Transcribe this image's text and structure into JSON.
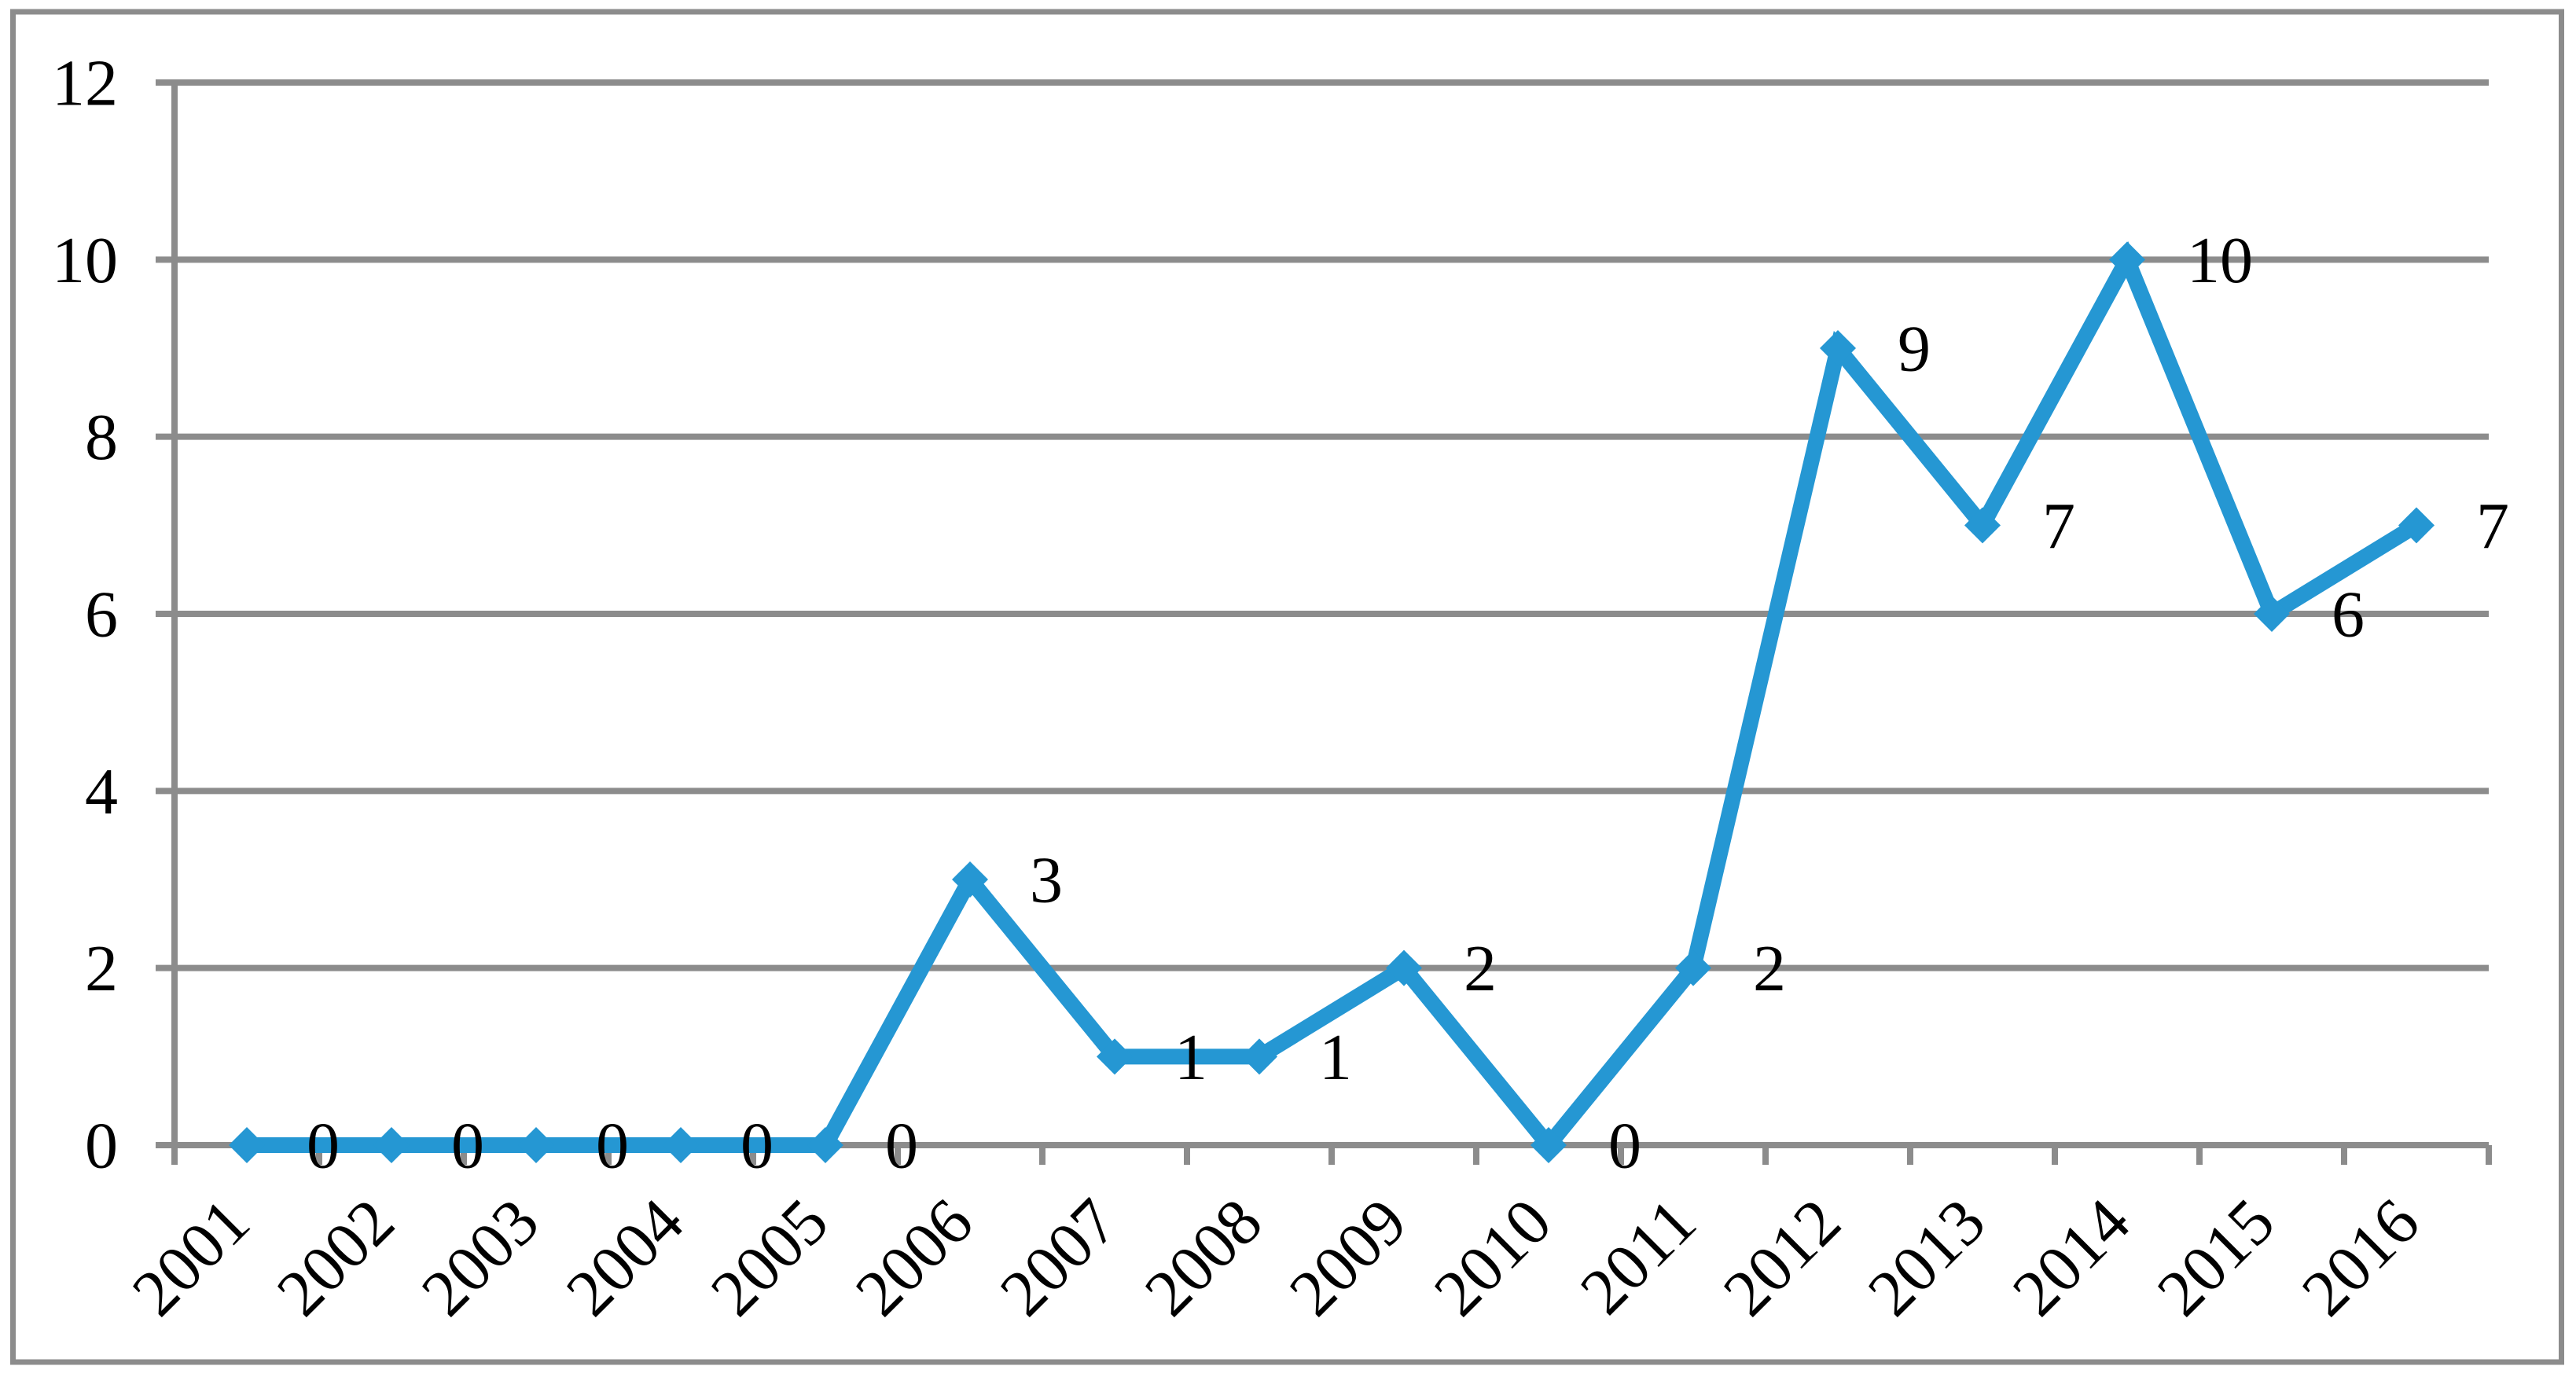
{
  "chart_data": {
    "type": "line",
    "title": "",
    "xlabel": "",
    "ylabel": "",
    "categories": [
      "2001",
      "2002",
      "2003",
      "2004",
      "2005",
      "2006",
      "2007",
      "2008",
      "2009",
      "2010",
      "2011",
      "2012",
      "2013",
      "2014",
      "2015",
      "2016"
    ],
    "values": [
      0,
      0,
      0,
      0,
      0,
      3,
      1,
      1,
      2,
      0,
      2,
      9,
      7,
      10,
      6,
      7
    ],
    "data_labels": [
      "0",
      "0",
      "0",
      "0",
      "0",
      "3",
      "1",
      "1",
      "2",
      "0",
      "2",
      "9",
      "7",
      "10",
      "6",
      "7"
    ],
    "ylim": [
      0,
      12
    ],
    "yticks": [
      0,
      2,
      4,
      6,
      8,
      10,
      12
    ],
    "ytick_labels": [
      "0",
      "2",
      "4",
      "6",
      "8",
      "10",
      "12"
    ],
    "grid": true,
    "legend": false,
    "marker": "diamond",
    "data_labels_position": "right",
    "x_tick_label_rotation_deg": 45,
    "colors": {
      "series_line": "#2597D3",
      "gridline": "#8C8C8C",
      "axis": "#8C8C8C",
      "chart_border": "#8C8C8C",
      "label_text": "#000000",
      "background": "#FFFFFF"
    }
  }
}
